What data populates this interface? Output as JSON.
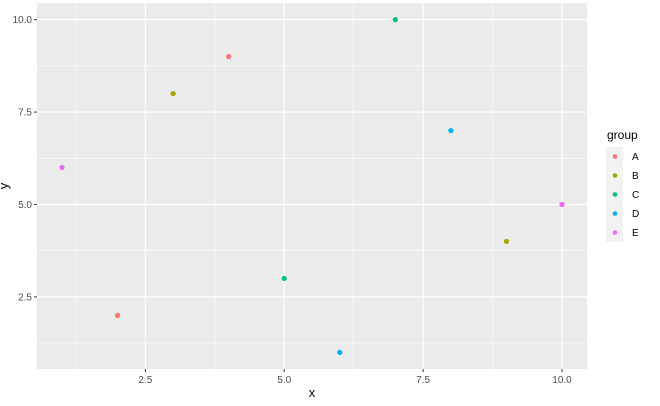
{
  "chart_data": {
    "type": "scatter",
    "xlabel": "x",
    "ylabel": "y",
    "xlim": [
      0.55,
      10.45
    ],
    "ylim": [
      0.55,
      10.45
    ],
    "x_ticks": [
      2.5,
      5.0,
      7.5,
      10.0
    ],
    "x_tick_labels": [
      "2.5",
      "5.0",
      "7.5",
      "10.0"
    ],
    "y_ticks": [
      2.5,
      5.0,
      7.5,
      10.0
    ],
    "y_tick_labels": [
      "2.5",
      "5.0",
      "7.5",
      "10.0"
    ],
    "grid": true,
    "legend": {
      "title": "group",
      "placement": "right"
    },
    "series": [
      {
        "name": "A",
        "color": "#F8766D",
        "points": [
          {
            "x": 2,
            "y": 2
          },
          {
            "x": 4,
            "y": 9
          }
        ]
      },
      {
        "name": "B",
        "color": "#A3A500",
        "points": [
          {
            "x": 3,
            "y": 8
          },
          {
            "x": 9,
            "y": 4
          }
        ]
      },
      {
        "name": "C",
        "color": "#00BF7D",
        "points": [
          {
            "x": 5,
            "y": 3
          },
          {
            "x": 7,
            "y": 10
          }
        ]
      },
      {
        "name": "D",
        "color": "#00B0F6",
        "points": [
          {
            "x": 6,
            "y": 1
          },
          {
            "x": 8,
            "y": 7
          }
        ]
      },
      {
        "name": "E",
        "color": "#E76BF3",
        "points": [
          {
            "x": 1,
            "y": 6
          },
          {
            "x": 10,
            "y": 5
          }
        ]
      }
    ]
  }
}
